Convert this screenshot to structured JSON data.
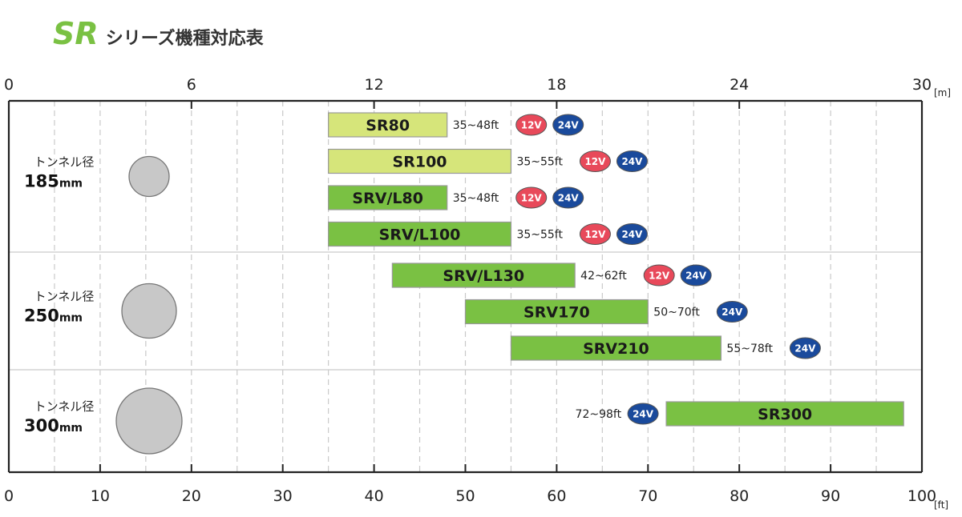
{
  "title": {
    "sr": "SR",
    "rest": "シリーズ機種対応表"
  },
  "colors": {
    "light_green": "#d6e57a",
    "green": "#7ac143",
    "badge_12v": "#e8495a",
    "badge_24v": "#1a4a9c",
    "circle": "#c8c8c8",
    "title_green": "#7ac143"
  },
  "chart_data": {
    "type": "bar",
    "orientation": "horizontal-range",
    "x_top": {
      "unit": "[m]",
      "ticks": [
        "0",
        "6",
        "12",
        "18",
        "24",
        "30"
      ],
      "range": [
        0,
        30
      ]
    },
    "x_bottom": {
      "unit": "[ft]",
      "ticks": [
        "0",
        "10",
        "20",
        "30",
        "40",
        "50",
        "60",
        "70",
        "80",
        "90",
        "100"
      ],
      "range": [
        0,
        100
      ]
    },
    "grid": true,
    "groups": [
      {
        "label": "トンネル径",
        "size": "185",
        "unit": "mm",
        "models": [
          {
            "name": "SR80",
            "range_ft": [
              35,
              48
            ],
            "label": "35~48ft",
            "voltages": [
              "12V",
              "24V"
            ],
            "color": "light_green"
          },
          {
            "name": "SR100",
            "range_ft": [
              35,
              55
            ],
            "label": "35~55ft",
            "voltages": [
              "12V",
              "24V"
            ],
            "color": "light_green"
          },
          {
            "name": "SRV/L80",
            "range_ft": [
              35,
              48
            ],
            "label": "35~48ft",
            "voltages": [
              "12V",
              "24V"
            ],
            "color": "green"
          },
          {
            "name": "SRV/L100",
            "range_ft": [
              35,
              55
            ],
            "label": "35~55ft",
            "voltages": [
              "12V",
              "24V"
            ],
            "color": "green"
          }
        ]
      },
      {
        "label": "トンネル径",
        "size": "250",
        "unit": "mm",
        "models": [
          {
            "name": "SRV/L130",
            "range_ft": [
              42,
              62
            ],
            "label": "42~62ft",
            "voltages": [
              "12V",
              "24V"
            ],
            "color": "green"
          },
          {
            "name": "SRV170",
            "range_ft": [
              50,
              70
            ],
            "label": "50~70ft",
            "voltages": [
              "24V"
            ],
            "color": "green"
          },
          {
            "name": "SRV210",
            "range_ft": [
              55,
              78
            ],
            "label": "55~78ft",
            "voltages": [
              "24V"
            ],
            "color": "green"
          }
        ]
      },
      {
        "label": "トンネル径",
        "size": "300",
        "unit": "mm",
        "models": [
          {
            "name": "SR300",
            "range_ft": [
              72,
              98
            ],
            "label": "72~98ft",
            "voltages": [
              "24V"
            ],
            "color": "green",
            "label_position": "left"
          }
        ]
      }
    ]
  }
}
